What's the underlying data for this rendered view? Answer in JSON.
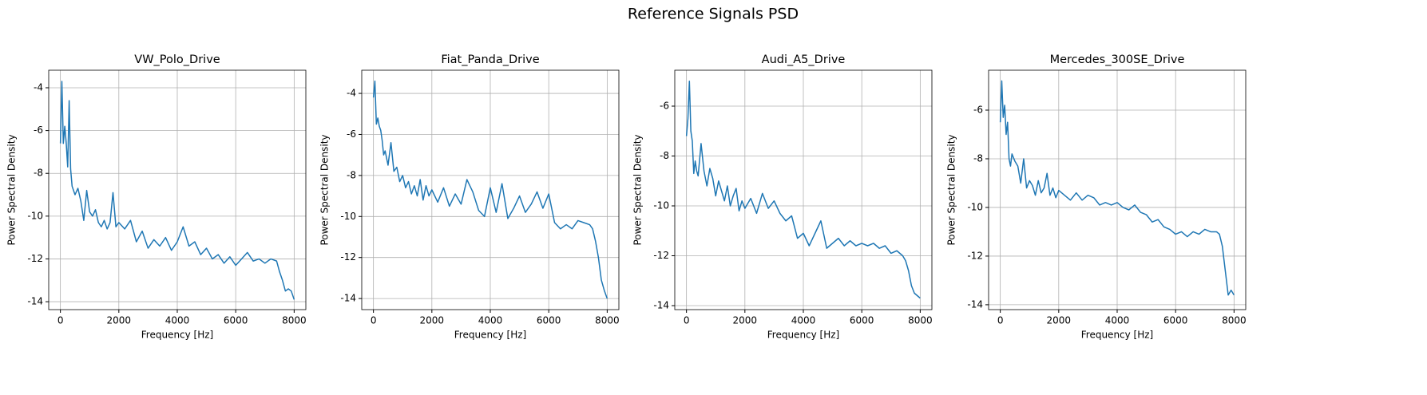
{
  "title": "Reference Signals PSD",
  "chart_data": [
    {
      "type": "line",
      "title": "VW_Polo_Drive",
      "xlabel": "Frequency [Hz]",
      "ylabel": "Power Spectral Density",
      "color": "#1f77b4",
      "grid": true,
      "x": [
        0,
        50,
        100,
        150,
        200,
        250,
        300,
        350,
        400,
        500,
        600,
        700,
        800,
        900,
        1000,
        1100,
        1200,
        1300,
        1400,
        1500,
        1600,
        1700,
        1800,
        1900,
        2000,
        2200,
        2400,
        2600,
        2800,
        3000,
        3200,
        3400,
        3600,
        3800,
        4000,
        4200,
        4400,
        4600,
        4800,
        5000,
        5200,
        5400,
        5600,
        5800,
        6000,
        6200,
        6400,
        6600,
        6800,
        7000,
        7200,
        7400,
        7500,
        7600,
        7700,
        7800,
        7900,
        8000
      ],
      "values": [
        -6.6,
        -3.7,
        -6.6,
        -5.8,
        -6.6,
        -7.7,
        -4.6,
        -7.8,
        -8.6,
        -9.0,
        -8.7,
        -9.3,
        -10.2,
        -8.8,
        -9.8,
        -10.0,
        -9.7,
        -10.3,
        -10.5,
        -10.2,
        -10.6,
        -10.3,
        -8.9,
        -10.5,
        -10.3,
        -10.6,
        -10.2,
        -11.2,
        -10.7,
        -11.5,
        -11.1,
        -11.4,
        -11.0,
        -11.6,
        -11.2,
        -10.5,
        -11.4,
        -11.2,
        -11.8,
        -11.5,
        -12.0,
        -11.8,
        -12.2,
        -11.9,
        -12.3,
        -12.0,
        -11.7,
        -12.1,
        -12.0,
        -12.2,
        -12.0,
        -12.1,
        -12.6,
        -13.0,
        -13.5,
        -13.4,
        -13.5,
        -13.9
      ],
      "xlim": [
        -400,
        8400
      ],
      "ylim": [
        -14.37,
        -3.18
      ],
      "xticks": [
        0,
        2000,
        4000,
        6000,
        8000
      ],
      "yticks": [
        -14,
        -12,
        -10,
        -8,
        -6,
        -4
      ]
    },
    {
      "type": "line",
      "title": "Fiat_Panda_Drive",
      "xlabel": "Frequency [Hz]",
      "ylabel": "Power Spectral Density",
      "color": "#1f77b4",
      "grid": true,
      "x": [
        0,
        50,
        100,
        150,
        200,
        250,
        300,
        350,
        400,
        500,
        600,
        700,
        800,
        900,
        1000,
        1100,
        1200,
        1300,
        1400,
        1500,
        1600,
        1700,
        1800,
        1900,
        2000,
        2200,
        2400,
        2600,
        2800,
        3000,
        3200,
        3400,
        3600,
        3800,
        4000,
        4200,
        4400,
        4600,
        4800,
        5000,
        5200,
        5400,
        5600,
        5800,
        6000,
        6200,
        6400,
        6600,
        6800,
        7000,
        7200,
        7400,
        7500,
        7600,
        7700,
        7800,
        7900,
        8000
      ],
      "values": [
        -4.2,
        -3.4,
        -5.5,
        -5.2,
        -5.6,
        -5.8,
        -6.3,
        -7.0,
        -6.8,
        -7.5,
        -6.4,
        -7.8,
        -7.6,
        -8.3,
        -8.0,
        -8.6,
        -8.3,
        -8.9,
        -8.5,
        -9.0,
        -8.2,
        -9.2,
        -8.5,
        -9.0,
        -8.7,
        -9.3,
        -8.6,
        -9.5,
        -8.9,
        -9.4,
        -8.2,
        -8.8,
        -9.7,
        -10.0,
        -8.6,
        -9.8,
        -8.4,
        -10.1,
        -9.6,
        -9.0,
        -9.8,
        -9.4,
        -8.8,
        -9.6,
        -8.9,
        -10.3,
        -10.6,
        -10.4,
        -10.6,
        -10.2,
        -10.3,
        -10.4,
        -10.6,
        -11.2,
        -12.0,
        -13.1,
        -13.6,
        -14.0
      ],
      "xlim": [
        -400,
        8400
      ],
      "ylim": [
        -14.54,
        -2.87
      ],
      "xticks": [
        0,
        2000,
        4000,
        6000,
        8000
      ],
      "yticks": [
        -14,
        -12,
        -10,
        -8,
        -6,
        -4
      ]
    },
    {
      "type": "line",
      "title": "Audi_A5_Drive",
      "xlabel": "Frequency [Hz]",
      "ylabel": "Power Spectral Density",
      "color": "#1f77b4",
      "grid": true,
      "x": [
        0,
        50,
        100,
        150,
        200,
        250,
        300,
        350,
        400,
        500,
        600,
        700,
        800,
        900,
        1000,
        1100,
        1200,
        1300,
        1400,
        1500,
        1600,
        1700,
        1800,
        1900,
        2000,
        2200,
        2400,
        2600,
        2800,
        3000,
        3200,
        3400,
        3600,
        3800,
        4000,
        4200,
        4400,
        4600,
        4800,
        5000,
        5200,
        5400,
        5600,
        5800,
        6000,
        6200,
        6400,
        6600,
        6800,
        7000,
        7200,
        7400,
        7500,
        7600,
        7700,
        7800,
        7900,
        8000
      ],
      "values": [
        -7.2,
        -6.5,
        -5.0,
        -7.0,
        -7.4,
        -8.7,
        -8.2,
        -8.6,
        -8.8,
        -7.5,
        -8.6,
        -9.2,
        -8.5,
        -8.9,
        -9.6,
        -9.0,
        -9.4,
        -9.8,
        -9.2,
        -10.0,
        -9.6,
        -9.3,
        -10.2,
        -9.8,
        -10.1,
        -9.7,
        -10.3,
        -9.5,
        -10.1,
        -9.8,
        -10.3,
        -10.6,
        -10.4,
        -11.3,
        -11.1,
        -11.6,
        -11.1,
        -10.6,
        -11.7,
        -11.5,
        -11.3,
        -11.6,
        -11.4,
        -11.6,
        -11.5,
        -11.6,
        -11.5,
        -11.7,
        -11.6,
        -11.9,
        -11.8,
        -12.0,
        -12.2,
        -12.6,
        -13.2,
        -13.5,
        -13.6,
        -13.7
      ],
      "xlim": [
        -400,
        8400
      ],
      "ylim": [
        -14.16,
        -4.56
      ],
      "xticks": [
        0,
        2000,
        4000,
        6000,
        8000
      ],
      "yticks": [
        -14,
        -12,
        -10,
        -8,
        -6
      ]
    },
    {
      "type": "line",
      "title": "Mercedes_300SE_Drive",
      "xlabel": "Frequency [Hz]",
      "ylabel": "Power Spectral Density",
      "color": "#1f77b4",
      "grid": true,
      "x": [
        0,
        50,
        100,
        150,
        200,
        250,
        300,
        350,
        400,
        500,
        600,
        700,
        800,
        900,
        1000,
        1100,
        1200,
        1300,
        1400,
        1500,
        1600,
        1700,
        1800,
        1900,
        2000,
        2200,
        2400,
        2600,
        2800,
        3000,
        3200,
        3400,
        3600,
        3800,
        4000,
        4200,
        4400,
        4600,
        4800,
        5000,
        5200,
        5400,
        5600,
        5800,
        6000,
        6200,
        6400,
        6600,
        6800,
        7000,
        7200,
        7400,
        7500,
        7600,
        7700,
        7800,
        7900,
        8000
      ],
      "values": [
        -6.5,
        -4.8,
        -6.3,
        -5.8,
        -7.0,
        -6.5,
        -8.0,
        -8.3,
        -7.8,
        -8.1,
        -8.3,
        -9.0,
        -8.0,
        -9.2,
        -8.9,
        -9.1,
        -9.5,
        -8.9,
        -9.4,
        -9.2,
        -8.6,
        -9.5,
        -9.2,
        -9.6,
        -9.3,
        -9.5,
        -9.7,
        -9.4,
        -9.7,
        -9.5,
        -9.6,
        -9.9,
        -9.8,
        -9.9,
        -9.8,
        -10.0,
        -10.1,
        -9.9,
        -10.2,
        -10.3,
        -10.6,
        -10.5,
        -10.8,
        -10.9,
        -11.1,
        -11.0,
        -11.2,
        -11.0,
        -11.1,
        -10.9,
        -11.0,
        -11.0,
        -11.1,
        -11.6,
        -12.6,
        -13.6,
        -13.4,
        -13.6
      ],
      "xlim": [
        -400,
        8400
      ],
      "ylim": [
        -14.2,
        -4.36
      ],
      "xticks": [
        0,
        2000,
        4000,
        6000,
        8000
      ],
      "yticks": [
        -14,
        -12,
        -10,
        -8,
        -6
      ]
    }
  ]
}
